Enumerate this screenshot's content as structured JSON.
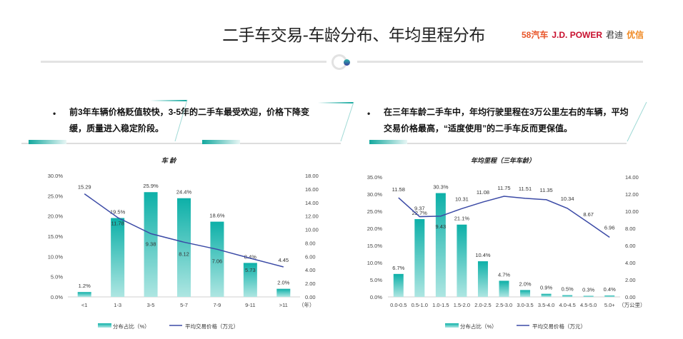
{
  "header": {
    "title": "二手车交易-车龄分布、年均里程分布",
    "logos": [
      "58汽车",
      "J.D. POWER",
      "君迪",
      "优信"
    ]
  },
  "insights": [
    {
      "bullet": "•",
      "line1": "前3年车辆价格贬值较快，3-5年的二手车最受欢迎，价格下降变",
      "line2": "缓，质量进入稳定阶段。"
    },
    {
      "bullet": "•",
      "line1": "在三年车龄二手车中，年均行驶里程在3万公里左右的车辆，平均",
      "line2": "交易价格最高，“适度使用”的二手车反而更保值。"
    }
  ],
  "colors": {
    "bar_top": "#0db0a8",
    "bar_bottom": "#aee6e2",
    "line": "#3b4aa6"
  },
  "chart_data": [
    {
      "type": "bar+line",
      "title": "车 龄",
      "categories": [
        "<1",
        "1-3",
        "3-5",
        "5-7",
        "7-9",
        "9-11",
        ">11"
      ],
      "x_unit": "（年）",
      "series": [
        {
          "name": "分布占比（%）",
          "axis": "left",
          "values": [
            1.2,
            19.5,
            25.9,
            24.4,
            18.6,
            8.4,
            2.0
          ],
          "labels": [
            "1.2%",
            "19.5%",
            "25.9%",
            "24.4%",
            "18.6%",
            "8.4%",
            "2.0%"
          ]
        },
        {
          "name": "平均交易价格（万元）",
          "axis": "right",
          "values": [
            15.29,
            11.78,
            9.38,
            8.12,
            7.06,
            5.73,
            4.45
          ],
          "labels": [
            "15.29",
            "11.78",
            "9.38",
            "8.12",
            "7.06",
            "5.73",
            "4.45"
          ]
        }
      ],
      "ylim_left": [
        0,
        30
      ],
      "yticks_left": [
        "0.0%",
        "5.0%",
        "10.0%",
        "15.0%",
        "20.0%",
        "25.0%",
        "30.0%"
      ],
      "ylim_right": [
        0,
        18
      ],
      "yticks_right": [
        "0.00",
        "2.00",
        "4.00",
        "6.00",
        "8.00",
        "10.00",
        "12.00",
        "14.00",
        "16.00",
        "18.00"
      ],
      "legend": "bottom"
    },
    {
      "type": "bar+line",
      "title": "年均里程（三年车龄）",
      "categories": [
        "0.0-0.5",
        "0.5-1.0",
        "1.0-1.5",
        "1.5-2.0",
        "2.0-2.5",
        "2.5-3.0",
        "3.0-3.5",
        "3.5-4.0",
        "4.0-4.5",
        "4.5-5.0",
        "5.0+"
      ],
      "x_unit": "（万公里）",
      "series": [
        {
          "name": "分布占比（%）",
          "axis": "left",
          "values": [
            6.7,
            22.7,
            30.3,
            21.1,
            10.4,
            4.7,
            2.0,
            0.9,
            0.5,
            0.3,
            0.4
          ],
          "labels": [
            "6.7%",
            "22.7%",
            "30.3%",
            "21.1%",
            "10.4%",
            "4.7%",
            "2.0%",
            "0.9%",
            "0.5%",
            "0.3%",
            "0.4%"
          ]
        },
        {
          "name": "平均交易价格（万元）",
          "axis": "right",
          "values": [
            11.58,
            9.37,
            9.43,
            10.31,
            11.08,
            11.75,
            11.51,
            11.35,
            10.34,
            8.67,
            6.96
          ],
          "labels": [
            "11.58",
            "9.37",
            "9.43",
            "10.31",
            "11.08",
            "11.75",
            "11.51",
            "11.35",
            "10.34",
            "8.67",
            "6.96"
          ]
        }
      ],
      "ylim_left": [
        0,
        35
      ],
      "yticks_left": [
        "0.0%",
        "5.0%",
        "10.0%",
        "15.0%",
        "20.0%",
        "25.0%",
        "30.0%",
        "35.0%"
      ],
      "ylim_right": [
        0,
        14
      ],
      "yticks_right": [
        "0.00",
        "2.00",
        "4.00",
        "6.00",
        "8.00",
        "10.00",
        "12.00",
        "14.00"
      ],
      "legend": "bottom"
    }
  ]
}
